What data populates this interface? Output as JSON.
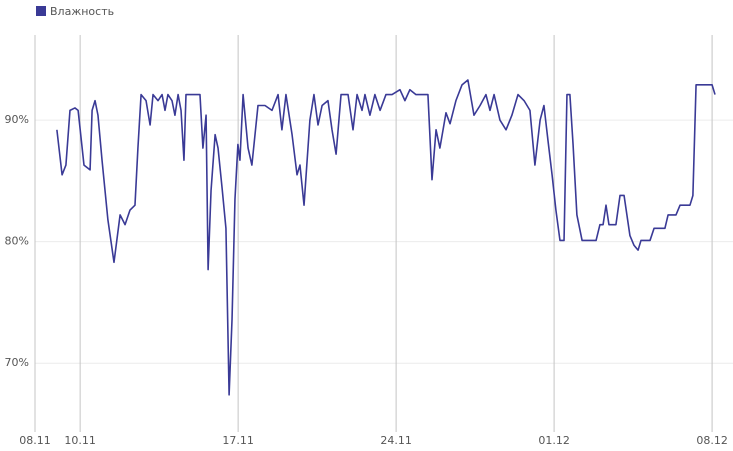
{
  "chart_data": {
    "type": "line",
    "x": [
      0.97,
      1.2,
      1.37,
      1.55,
      1.77,
      1.91,
      2.17,
      2.44,
      2.53,
      2.66,
      2.79,
      2.97,
      3.23,
      3.5,
      3.77,
      3.99,
      4.21,
      4.43,
      4.56,
      4.7,
      4.92,
      5.1,
      5.23,
      5.45,
      5.63,
      5.76,
      5.89,
      6.07,
      6.2,
      6.34,
      6.47,
      6.6,
      6.69,
      6.87,
      7.13,
      7.31,
      7.44,
      7.58,
      7.67,
      7.8,
      7.98,
      8.11,
      8.29,
      8.46,
      8.6,
      8.73,
      8.86,
      8.99,
      9.08,
      9.22,
      9.44,
      9.61,
      9.88,
      10.19,
      10.5,
      10.77,
      10.94,
      11.12,
      11.39,
      11.61,
      11.74,
      11.92,
      12.18,
      12.36,
      12.54,
      12.72,
      12.98,
      13.16,
      13.34,
      13.56,
      13.87,
      14.09,
      14.27,
      14.49,
      14.62,
      14.84,
      15.06,
      15.29,
      15.55,
      15.82,
      16.17,
      16.39,
      16.61,
      16.88,
      17.41,
      17.59,
      17.77,
      17.94,
      18.21,
      18.39,
      18.65,
      18.92,
      19.18,
      19.45,
      19.72,
      19.98,
      20.16,
      20.34,
      20.6,
      20.87,
      21.13,
      21.4,
      21.67,
      21.93,
      22.15,
      22.38,
      22.55,
      22.73,
      22.91,
      23.08,
      23.26,
      23.44,
      23.57,
      23.7,
      23.84,
      24.01,
      24.24,
      24.86,
      25.03,
      25.17,
      25.3,
      25.43,
      25.74,
      25.92,
      26.1,
      26.36,
      26.54,
      26.72,
      26.85,
      27.25,
      27.43,
      27.91,
      28.05,
      28.4,
      28.58,
      29.02,
      29.15,
      29.29,
      30.0,
      30.13
    ],
    "series": [
      {
        "name": "Влажность",
        "color": "#3a3a96",
        "values": [
          89.2,
          85.5,
          86.3,
          90.8,
          91.0,
          90.8,
          86.3,
          85.9,
          90.8,
          91.6,
          90.4,
          86.7,
          81.8,
          78.3,
          82.2,
          81.4,
          82.6,
          83.0,
          87.7,
          92.1,
          91.6,
          89.6,
          92.1,
          91.6,
          92.1,
          90.8,
          92.1,
          91.6,
          90.4,
          92.1,
          90.8,
          86.7,
          92.1,
          92.1,
          92.1,
          92.1,
          87.7,
          90.4,
          77.7,
          84.2,
          88.8,
          87.7,
          84.4,
          81.1,
          67.4,
          73.6,
          83.5,
          88.0,
          86.7,
          92.1,
          87.7,
          86.3,
          91.2,
          91.2,
          90.8,
          92.1,
          89.2,
          92.1,
          88.8,
          85.5,
          86.3,
          83.0,
          90.0,
          92.1,
          89.6,
          91.2,
          91.6,
          89.2,
          87.2,
          92.1,
          92.1,
          89.2,
          92.1,
          90.8,
          92.1,
          90.4,
          92.1,
          90.8,
          92.1,
          92.1,
          92.5,
          91.6,
          92.5,
          92.1,
          92.1,
          85.1,
          89.2,
          87.7,
          90.6,
          89.7,
          91.6,
          92.9,
          93.3,
          90.4,
          91.2,
          92.1,
          90.8,
          92.1,
          90.0,
          89.2,
          90.4,
          92.1,
          91.6,
          90.8,
          86.3,
          90.0,
          91.2,
          88.3,
          85.5,
          82.6,
          80.1,
          80.1,
          92.1,
          92.1,
          88.0,
          82.2,
          80.1,
          80.1,
          81.4,
          81.4,
          83.0,
          81.4,
          81.4,
          83.8,
          83.8,
          80.5,
          79.7,
          79.3,
          80.1,
          80.1,
          81.1,
          81.1,
          82.2,
          82.2,
          83.0,
          83.0,
          83.8,
          92.9,
          92.9,
          92.1
        ]
      }
    ],
    "xlim": [
      0,
      30.9
    ],
    "xticks": [
      {
        "value": 0,
        "label": "08.11"
      },
      {
        "value": 2,
        "label": "10.11"
      },
      {
        "value": 9,
        "label": "17.11"
      },
      {
        "value": 16,
        "label": "24.11"
      },
      {
        "value": 23,
        "label": "01.12"
      },
      {
        "value": 30,
        "label": "08.12"
      }
    ],
    "ylim": [
      65,
      97
    ],
    "yticks": [
      {
        "value": 70,
        "label": "70%"
      },
      {
        "value": 80,
        "label": "80%"
      },
      {
        "value": 90,
        "label": "90%"
      }
    ],
    "grid": true,
    "legend": "top-left"
  }
}
